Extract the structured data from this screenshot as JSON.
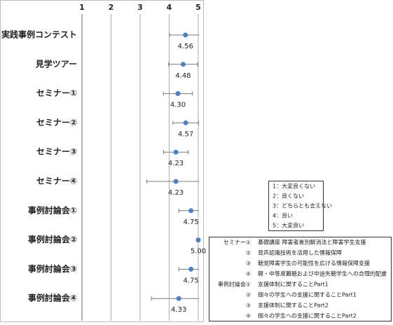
{
  "chart_data": {
    "type": "dot",
    "categories": [
      "実践事例コンテスト",
      "見学ツアー",
      "セミナー①",
      "セミナー②",
      "セミナー③",
      "セミナー④",
      "事例討論会①",
      "事例討論会②",
      "事例討論会③",
      "事例討論会④"
    ],
    "values": [
      4.56,
      4.48,
      4.3,
      4.57,
      4.23,
      4.23,
      4.75,
      5.0,
      4.75,
      4.33
    ],
    "value_labels": [
      "4.56",
      "4.48",
      "4.30",
      "4.57",
      "4.23",
      "4.23",
      "4.75",
      "5.00",
      "4.75",
      "4.33"
    ],
    "errors": [
      0.55,
      0.5,
      0.5,
      0.44,
      0.42,
      1.0,
      0.42,
      0,
      0.42,
      0.94
    ],
    "color": "#4f81bd",
    "xlim": [
      1,
      5
    ],
    "xticks": [
      1,
      2,
      3,
      4,
      5
    ],
    "grid": true
  },
  "scale_legend": [
    "1：大変良くない",
    "2：良くない",
    "3：どちらとも言えない",
    "4：良い",
    "5：大変良い"
  ],
  "session_legend": [
    {
      "label": "セミナー①",
      "text": "基礎講座 障害者差別解消法と障害学生支援"
    },
    {
      "label": "②",
      "text": "音声認識技術を活用した情報保障"
    },
    {
      "label": "③",
      "text": "聴覚障害学生の可能性を広げる情報保障支援"
    },
    {
      "label": "④",
      "text": "軽・中等度難聴および中途失聴学生への合理的配慮"
    },
    {
      "label": "事例討論会①",
      "text": "支援体制に関することPart1"
    },
    {
      "label": "②",
      "text": "個々の学生への支援に関することPart1"
    },
    {
      "label": "③",
      "text": "支援体制に関することPart2"
    },
    {
      "label": "④",
      "text": "個々の学生への支援に関することPart2"
    }
  ]
}
